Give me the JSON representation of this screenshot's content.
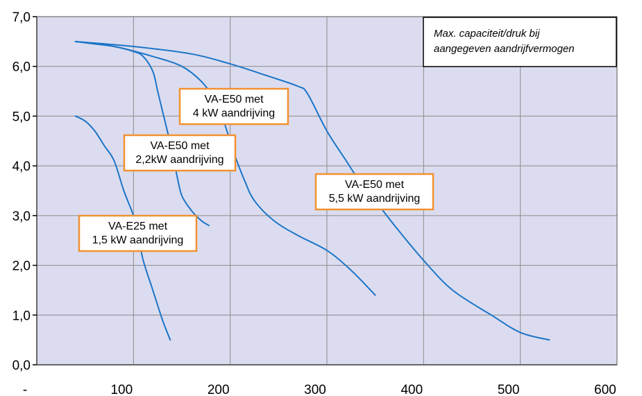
{
  "chart_data": {
    "type": "line",
    "title": "",
    "xlabel": "",
    "ylabel": "",
    "xlim": [
      0,
      600
    ],
    "ylim": [
      0,
      7
    ],
    "x_ticks": [
      0,
      100,
      200,
      300,
      400,
      500,
      600
    ],
    "x_tick_labels": [
      "-",
      "100",
      "200",
      "300",
      "400",
      "500",
      "600"
    ],
    "y_ticks": [
      0,
      1,
      2,
      3,
      4,
      5,
      6,
      7
    ],
    "y_tick_labels": [
      "0,0",
      "1,0",
      "2,0",
      "3,0",
      "4,0",
      "5,0",
      "6,0",
      "7,0"
    ],
    "grid": true,
    "plot_background": "#dcdcf0",
    "line_color": "#1a75c7",
    "label_border_color": "#f29130",
    "series": [
      {
        "label": [
          "VA-E25 met",
          "1,5 kW aandrijving"
        ],
        "points": [
          [
            40,
            5.0
          ],
          [
            50,
            4.9
          ],
          [
            60,
            4.7
          ],
          [
            70,
            4.4
          ],
          [
            80,
            4.1
          ],
          [
            90,
            3.5
          ],
          [
            100,
            3.0
          ],
          [
            105,
            2.6
          ],
          [
            110,
            2.1
          ],
          [
            120,
            1.5
          ],
          [
            130,
            0.9
          ],
          [
            138,
            0.5
          ]
        ]
      },
      {
        "label": [
          "VA-E50 met",
          "2,2kW aandrijving"
        ],
        "points": [
          [
            40,
            6.5
          ],
          [
            60,
            6.45
          ],
          [
            80,
            6.4
          ],
          [
            100,
            6.3
          ],
          [
            110,
            6.2
          ],
          [
            120,
            5.9
          ],
          [
            125,
            5.5
          ],
          [
            130,
            5.1
          ],
          [
            135,
            4.7
          ],
          [
            140,
            4.3
          ],
          [
            145,
            3.8
          ],
          [
            150,
            3.4
          ],
          [
            160,
            3.1
          ],
          [
            170,
            2.9
          ],
          [
            178,
            2.8
          ]
        ]
      },
      {
        "label": [
          "VA-E50 met",
          "4 kW aandrijving"
        ],
        "points": [
          [
            40,
            6.5
          ],
          [
            80,
            6.4
          ],
          [
            120,
            6.2
          ],
          [
            150,
            6.0
          ],
          [
            170,
            5.7
          ],
          [
            185,
            5.3
          ],
          [
            195,
            4.8
          ],
          [
            205,
            4.2
          ],
          [
            215,
            3.7
          ],
          [
            225,
            3.3
          ],
          [
            245,
            2.9
          ],
          [
            270,
            2.6
          ],
          [
            300,
            2.3
          ],
          [
            325,
            1.9
          ],
          [
            350,
            1.4
          ]
        ]
      },
      {
        "label": [
          "VA-E50 met",
          "5,5 kW aandrijving"
        ],
        "points": [
          [
            40,
            6.5
          ],
          [
            100,
            6.4
          ],
          [
            160,
            6.25
          ],
          [
            200,
            6.05
          ],
          [
            240,
            5.8
          ],
          [
            270,
            5.6
          ],
          [
            280,
            5.45
          ],
          [
            300,
            4.7
          ],
          [
            320,
            4.1
          ],
          [
            340,
            3.5
          ],
          [
            350,
            3.3
          ],
          [
            370,
            2.8
          ],
          [
            400,
            2.1
          ],
          [
            430,
            1.5
          ],
          [
            470,
            1.0
          ],
          [
            500,
            0.65
          ],
          [
            530,
            0.5
          ]
        ]
      }
    ],
    "annotation": [
      "Max. capaciteit/druk bij",
      "aangegeven aandrijfvermogen"
    ]
  }
}
